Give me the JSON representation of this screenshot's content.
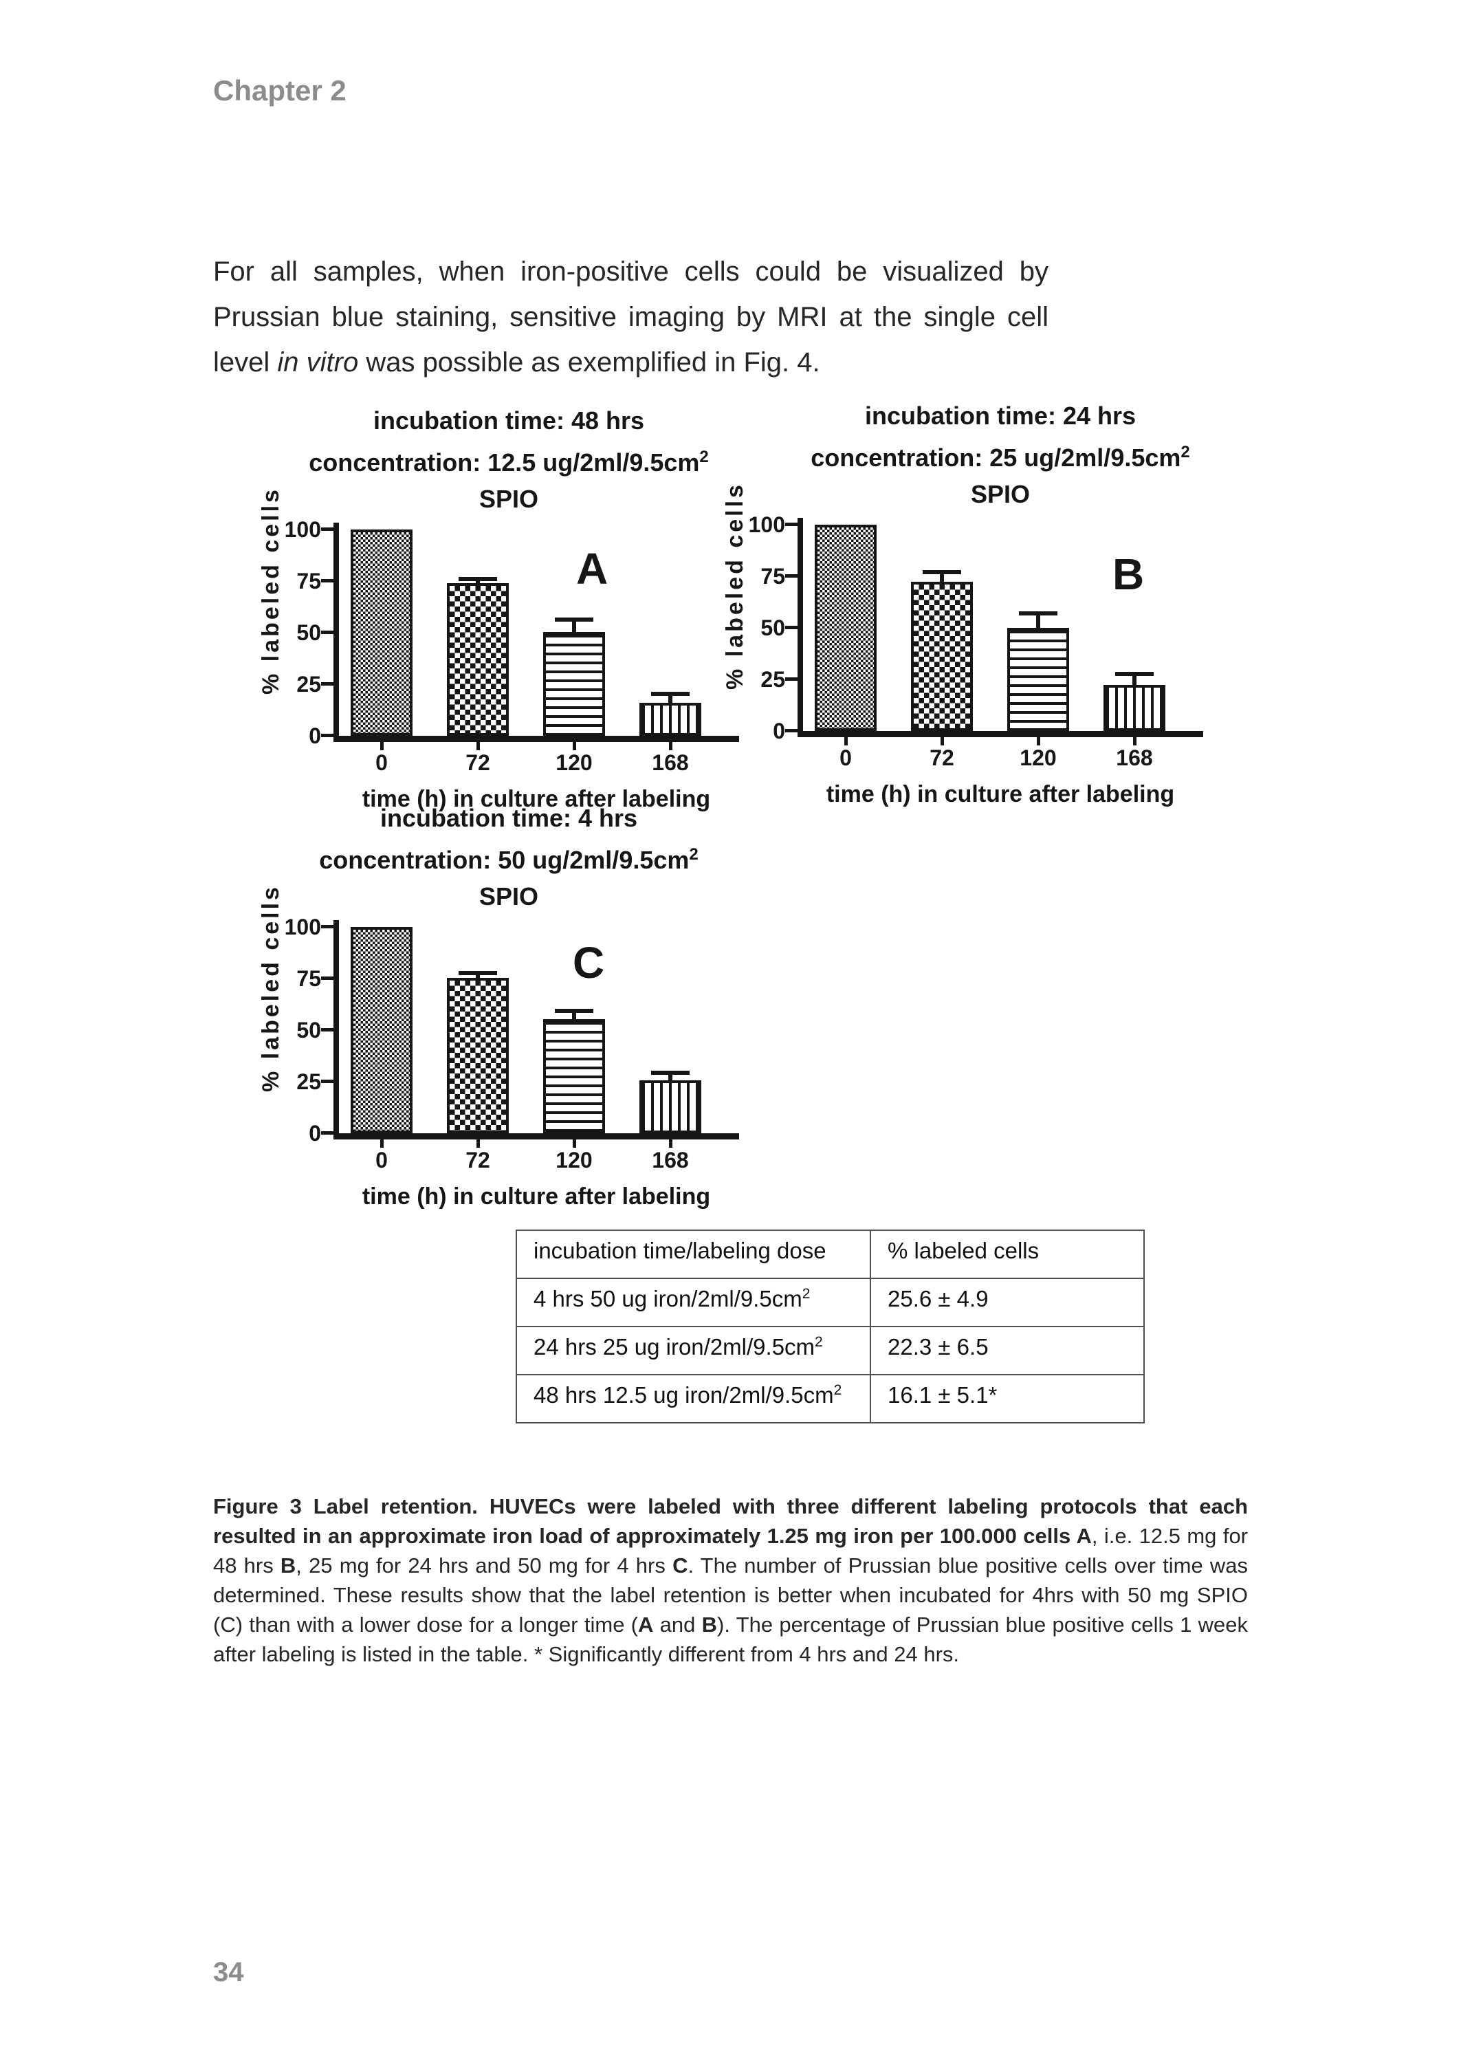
{
  "page": {
    "chapter_header": "Chapter 2",
    "page_number": "34"
  },
  "intro": {
    "segments": [
      {
        "text": "For all samples, when iron-positive cells could be visualized by Prussian blue staining, sensitive imaging by MRI at the single cell level ",
        "italic": false
      },
      {
        "text": "in vitro",
        "italic": true
      },
      {
        "text": " was possible as exemplified in Fig. 4.",
        "italic": false
      }
    ]
  },
  "chart_data": [
    {
      "type": "bar",
      "panel_label": "A",
      "title_line1": "incubation time: 48 hrs",
      "title_line2_pre": "concentration: 12.5 ug/2ml/9.5cm",
      "title_line2_sup": "2",
      "title_line2_post": " SPIO",
      "xlabel": "time (h) in culture after labeling",
      "ylabel": "% labeled cells",
      "ylim": [
        0,
        100
      ],
      "yticks": [
        0,
        25,
        50,
        75,
        100
      ],
      "categories": [
        "0",
        "72",
        "120",
        "168"
      ],
      "values": [
        100,
        74,
        50.5,
        16.1
      ],
      "errors_plus": [
        0,
        3,
        7,
        5.1
      ],
      "patterns": [
        "fine-checkerboard",
        "coarse-checkerboard",
        "horizontal-stripes",
        "vertical-stripes"
      ],
      "grid": "off",
      "legend": "none"
    },
    {
      "type": "bar",
      "panel_label": "B",
      "title_line1": "incubation time: 24 hrs",
      "title_line2_pre": "concentration: 25 ug/2ml/9.5cm",
      "title_line2_sup": "2",
      "title_line2_post": " SPIO",
      "xlabel": "time (h) in culture after labeling",
      "ylabel": "% labeled cells",
      "ylim": [
        0,
        100
      ],
      "yticks": [
        0,
        25,
        50,
        75,
        100
      ],
      "categories": [
        "0",
        "72",
        "120",
        "168"
      ],
      "values": [
        100,
        72.5,
        50,
        22.3
      ],
      "errors_plus": [
        0,
        5.5,
        8,
        6.5
      ],
      "patterns": [
        "fine-checkerboard",
        "coarse-checkerboard",
        "horizontal-stripes",
        "vertical-stripes"
      ],
      "grid": "off",
      "legend": "none"
    },
    {
      "type": "bar",
      "panel_label": "C",
      "title_line1": "incubation time: 4 hrs",
      "title_line2_pre": "concentration: 50 ug/2ml/9.5cm",
      "title_line2_sup": "2",
      "title_line2_post": " SPIO",
      "xlabel": "time (h) in culture after labeling",
      "ylabel": "% labeled cells",
      "ylim": [
        0,
        100
      ],
      "yticks": [
        0,
        25,
        50,
        75,
        100
      ],
      "categories": [
        "0",
        "72",
        "120",
        "168"
      ],
      "values": [
        100,
        75.5,
        55.5,
        25.6
      ],
      "errors_plus": [
        0,
        3.3,
        5,
        4.9
      ],
      "patterns": [
        "fine-checkerboard",
        "coarse-checkerboard",
        "horizontal-stripes",
        "vertical-stripes"
      ],
      "grid": "off",
      "legend": "none"
    }
  ],
  "table": {
    "headers": [
      "incubation time/labeling dose",
      "% labeled cells"
    ],
    "rows": [
      {
        "dose_pre": "4 hrs 50 ug iron/2ml/9.5cm",
        "dose_sup": "2",
        "value": "25.6 ± 4.9"
      },
      {
        "dose_pre": "24 hrs 25 ug iron/2ml/9.5cm",
        "dose_sup": "2",
        "value": "22.3 ± 6.5"
      },
      {
        "dose_pre": "48 hrs 12.5 ug iron/2ml/9.5cm",
        "dose_sup": "2",
        "value": "16.1 ± 5.1*"
      }
    ]
  },
  "caption": {
    "segments": [
      {
        "text": "Figure 3 Label retention. HUVECs were labeled with three different labeling protocols that each resulted in an approximate iron load of approximately 1.25 mg iron per 100.000 cells A",
        "bold": true
      },
      {
        "text": ", i.e. 12.5 mg for 48 hrs ",
        "bold": false
      },
      {
        "text": "B",
        "bold": true
      },
      {
        "text": ", 25 mg for 24 hrs and 50 mg for 4 hrs ",
        "bold": false
      },
      {
        "text": "C",
        "bold": true
      },
      {
        "text": ". The number of Prussian blue positive cells over time was determined. These results show that the label retention is better when incubated for 4hrs with 50 mg SPIO (C) than with a lower dose for a longer time (",
        "bold": false
      },
      {
        "text": "A",
        "bold": true
      },
      {
        "text": " and ",
        "bold": false
      },
      {
        "text": "B",
        "bold": true
      },
      {
        "text": "). The percentage of Prussian blue positive cells 1 week after labeling is listed in the table. * Significantly different from 4 hrs and 24 hrs.",
        "bold": false
      }
    ]
  },
  "colors": {
    "ink": "#161616",
    "body_text": "#262626",
    "muted_gray": "#8c8c8c",
    "table_border": "#4f4f4f",
    "background": "#ffffff"
  }
}
